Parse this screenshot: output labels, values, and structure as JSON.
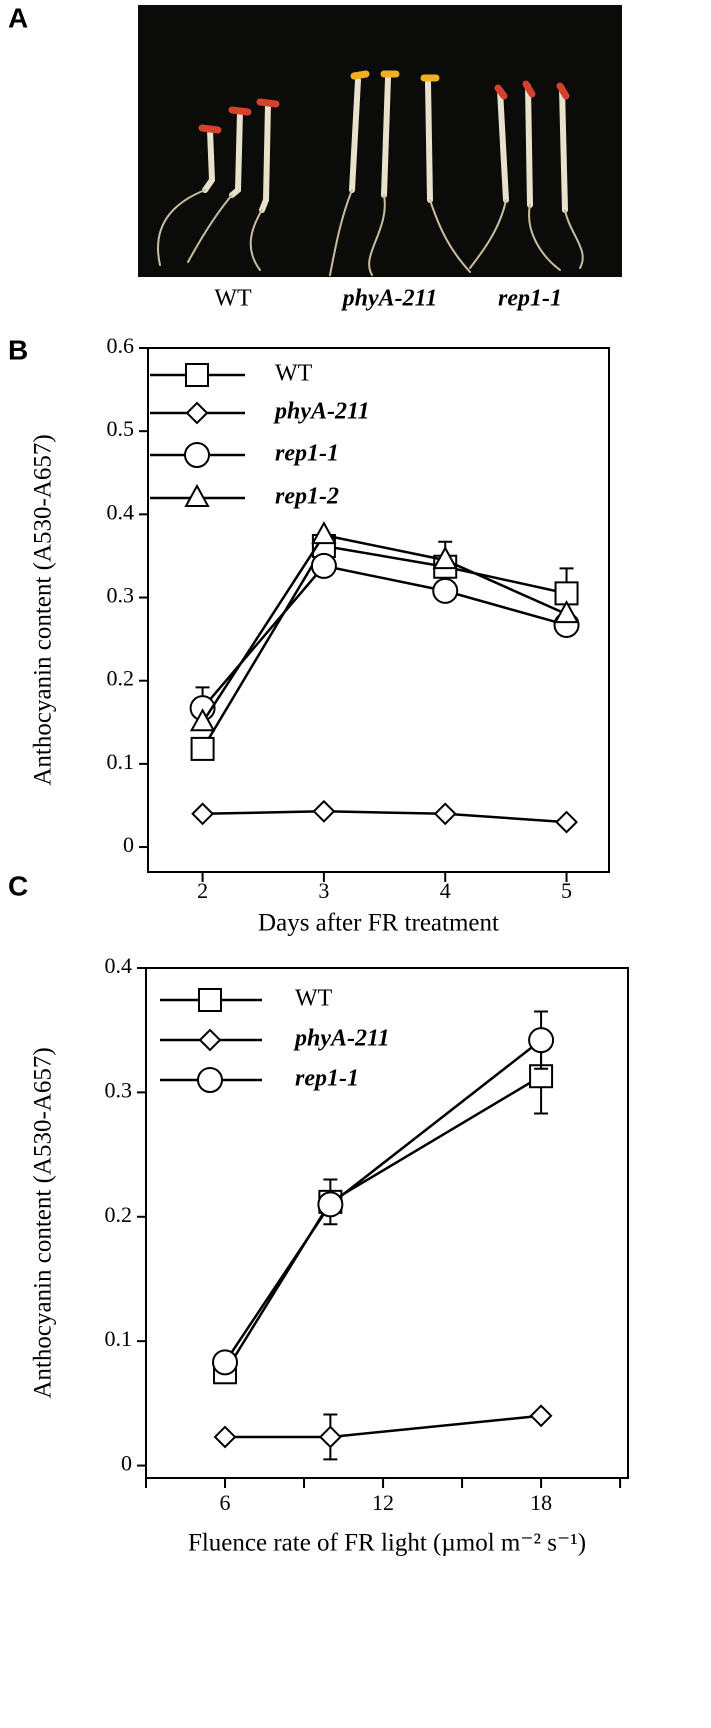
{
  "photo_panel": {
    "panel_label": "A",
    "captions": [
      "WT",
      "phyA-211",
      "rep1-1"
    ]
  },
  "chart_data": [
    {
      "type": "line",
      "panel_label": "B",
      "xlabel": "Days after FR treatment",
      "ylabel": "Anthocyanin content (A530-A657)",
      "x": [
        2,
        3,
        4,
        5
      ],
      "xlim": [
        1.55,
        5.35
      ],
      "xticks": [
        2,
        3,
        4,
        5
      ],
      "ylim": [
        -0.03,
        0.6
      ],
      "yticks": [
        0,
        0.1,
        0.2,
        0.3,
        0.4,
        0.5,
        0.6
      ],
      "series": [
        {
          "name": "WT",
          "marker": "square",
          "italic": false,
          "color": "#000000",
          "values": [
            0.118,
            0.362,
            0.337,
            0.305
          ],
          "errors": [
            null,
            null,
            0.03,
            0.03
          ]
        },
        {
          "name": "phyA-211",
          "marker": "diamond",
          "italic": true,
          "color": "#000000",
          "values": [
            0.04,
            0.043,
            0.04,
            0.03
          ],
          "errors": [
            null,
            null,
            null,
            null
          ]
        },
        {
          "name": "rep1-1",
          "marker": "circle",
          "italic": true,
          "color": "#000000",
          "values": [
            0.167,
            0.338,
            0.308,
            0.267
          ],
          "errors": [
            0.025,
            null,
            null,
            null
          ]
        },
        {
          "name": "rep1-2",
          "marker": "triangle",
          "italic": true,
          "color": "#000000",
          "values": [
            0.15,
            0.375,
            0.345,
            0.28
          ],
          "errors": [
            null,
            null,
            null,
            null
          ]
        }
      ]
    },
    {
      "type": "line",
      "panel_label": "C",
      "xlabel": "Fluence rate of FR light (µmol m⁻² s⁻¹)",
      "ylabel": "Anthocyanin content  (A530-A657)",
      "x": [
        6,
        10,
        18
      ],
      "xlim": [
        3,
        21.3
      ],
      "xticks": [
        6,
        12,
        18
      ],
      "minor_xticks": [
        3,
        9,
        15,
        21
      ],
      "ylim": [
        -0.01,
        0.4
      ],
      "yticks": [
        0,
        0.1,
        0.2,
        0.3,
        0.4
      ],
      "series": [
        {
          "name": "WT",
          "marker": "square",
          "italic": false,
          "color": "#000000",
          "values": [
            0.075,
            0.212,
            0.313
          ],
          "errors": [
            null,
            0.018,
            0.03
          ]
        },
        {
          "name": "phyA-211",
          "marker": "diamond",
          "italic": true,
          "color": "#000000",
          "values": [
            0.023,
            0.023,
            0.04
          ],
          "errors": [
            null,
            0.018,
            null
          ]
        },
        {
          "name": "rep1-1",
          "marker": "circle",
          "italic": true,
          "color": "#000000",
          "values": [
            0.083,
            0.21,
            0.342
          ],
          "errors": [
            null,
            null,
            0.023
          ]
        }
      ]
    }
  ]
}
